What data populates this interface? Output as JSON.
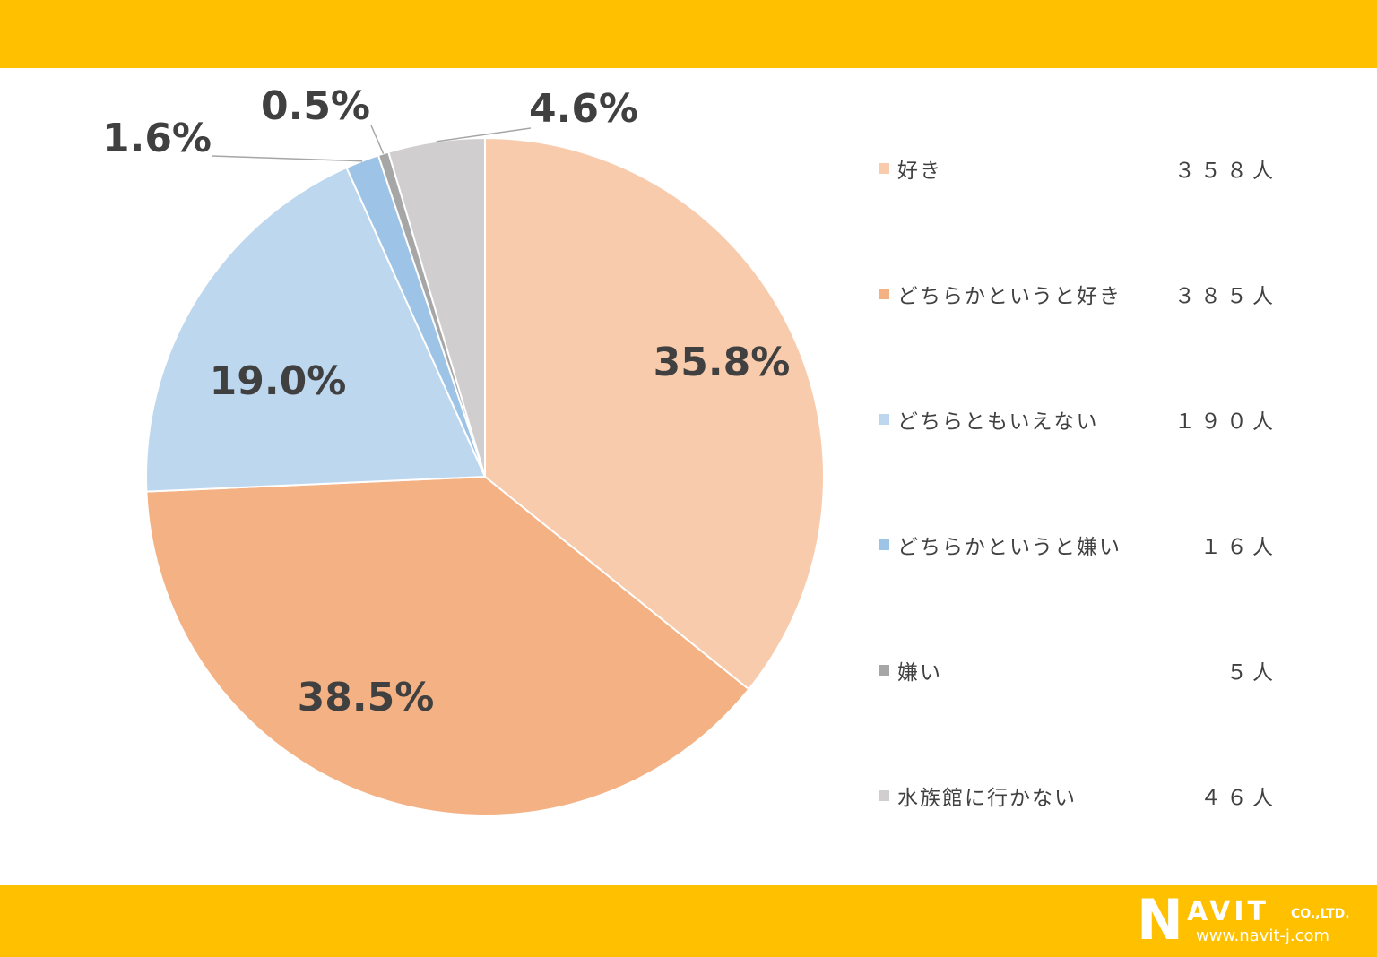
{
  "chart_data": {
    "type": "pie",
    "categories": [
      "好き",
      "どちらかというと好き",
      "どちらともいえない",
      "どちらかというと嫌い",
      "嫌い",
      "水族館に行かない"
    ],
    "values": [
      35.8,
      38.5,
      19.0,
      1.6,
      0.5,
      4.6
    ],
    "value_labels": [
      "35.8%",
      "38.5%",
      "19.0%",
      "1.6%",
      "0.5%",
      "4.6%"
    ],
    "counts": [
      "３５８人",
      "３８５人",
      "１９０人",
      "１６人",
      "５人",
      "４６人"
    ],
    "colors": [
      "#F8CBAD",
      "#F4B183",
      "#BDD7EE",
      "#9DC3E6",
      "#A6A6A6",
      "#D0CECE"
    ],
    "legend_position": "right",
    "label_color": "#404040"
  },
  "branding": {
    "bar_color": "#FFC000",
    "logo_initial": "N",
    "logo_name": "AVIT",
    "logo_suffix": "CO.,LTD.",
    "logo_url": "www.navit-j.com"
  }
}
